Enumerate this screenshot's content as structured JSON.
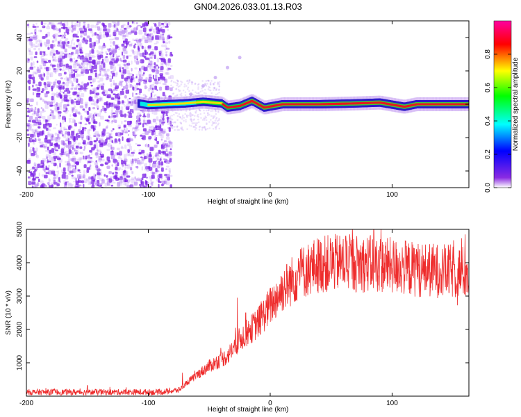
{
  "title": "GN04.2026.033.01.13.R03",
  "chart_data": [
    {
      "type": "heatmap",
      "name": "spectrogram",
      "xlabel": "Height of straight line (km)",
      "ylabel": "Frequency (Hz)",
      "xlim": [
        -200,
        163
      ],
      "ylim": [
        -50,
        50
      ],
      "xticks": [
        -200,
        -100,
        0,
        100
      ],
      "yticks": [
        -40,
        -20,
        0,
        20,
        40
      ],
      "colorbar": {
        "label": "Normalized spectral amplitude",
        "range": [
          0,
          1
        ],
        "ticks": [
          0.0,
          0.2,
          0.4,
          0.6,
          0.8
        ],
        "tick_labels": [
          "0.0",
          "0.2",
          "0.4",
          "0.6",
          "0.8"
        ],
        "colors": [
          "#ffffff",
          "#8a2be2",
          "#0000ff",
          "#00ffff",
          "#00ff00",
          "#ffff00",
          "#ff0000",
          "#ff00a0"
        ]
      },
      "noise_region_x": [
        -200,
        -82
      ],
      "signal_track": [
        {
          "x": -108,
          "freq": 0.5
        },
        {
          "x": -100,
          "freq": -0.5
        },
        {
          "x": -85,
          "freq": 0.0
        },
        {
          "x": -70,
          "freq": 0.5
        },
        {
          "x": -55,
          "freq": 1.5
        },
        {
          "x": -40,
          "freq": 0.5
        },
        {
          "x": -35,
          "freq": -2.0
        },
        {
          "x": -25,
          "freq": -1.0
        },
        {
          "x": -15,
          "freq": 2.0
        },
        {
          "x": -5,
          "freq": -2.0
        },
        {
          "x": 10,
          "freq": 0.0
        },
        {
          "x": 40,
          "freq": 0.0
        },
        {
          "x": 70,
          "freq": 0.5
        },
        {
          "x": 90,
          "freq": 1.0
        },
        {
          "x": 110,
          "freq": -1.5
        },
        {
          "x": 120,
          "freq": 0.0
        },
        {
          "x": 163,
          "freq": 0.0
        }
      ],
      "faint_streak": [
        [
          -80,
          2
        ],
        [
          -65,
          6
        ],
        [
          -55,
          11
        ],
        [
          -45,
          16
        ],
        [
          -35,
          22
        ],
        [
          -25,
          28
        ]
      ]
    },
    {
      "type": "line",
      "name": "snr",
      "xlabel": "Height of straight line (km)",
      "ylabel": "SNR (10 * v/v)",
      "xlim": [
        -200,
        163
      ],
      "ylim": [
        0,
        5000
      ],
      "xticks": [
        -200,
        -100,
        0,
        100
      ],
      "yticks": [
        1000,
        2000,
        3000,
        4000,
        5000
      ],
      "color": "#ee2c2c",
      "trend": [
        [
          -200,
          120
        ],
        [
          -90,
          120
        ],
        [
          -75,
          180
        ],
        [
          -65,
          500
        ],
        [
          -50,
          900
        ],
        [
          -35,
          1200
        ],
        [
          -25,
          1700
        ],
        [
          -10,
          2200
        ],
        [
          0,
          2700
        ],
        [
          10,
          3200
        ],
        [
          25,
          3700
        ],
        [
          40,
          3950
        ],
        [
          60,
          4000
        ],
        [
          90,
          3950
        ],
        [
          120,
          3800
        ],
        [
          163,
          3700
        ]
      ],
      "spikes": [
        [
          -150,
          320
        ],
        [
          -72,
          700
        ],
        [
          -27,
          2950
        ],
        [
          -20,
          2500
        ],
        [
          25,
          4400
        ],
        [
          50,
          4600
        ],
        [
          62,
          4800
        ],
        [
          85,
          5000
        ],
        [
          120,
          4400
        ]
      ]
    }
  ]
}
